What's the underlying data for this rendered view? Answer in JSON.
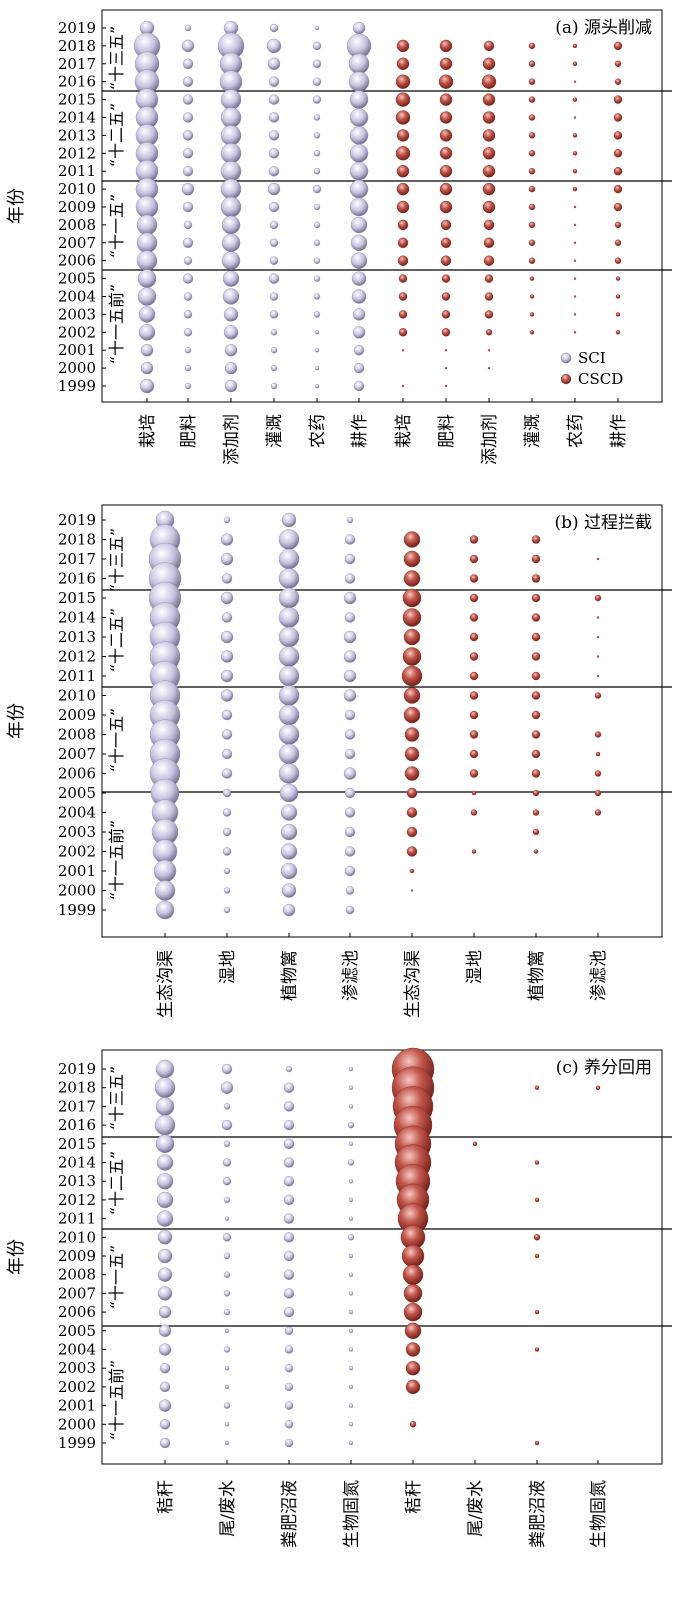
{
  "y_axis_label": "年份",
  "years": [
    "2019",
    "2018",
    "2017",
    "2016",
    "2015",
    "2014",
    "2013",
    "2012",
    "2011",
    "2010",
    "2009",
    "2008",
    "2007",
    "2006",
    "2005",
    "2004",
    "2003",
    "2002",
    "2001",
    "2000",
    "1999"
  ],
  "period_labels": [
    "“十三五”",
    "“十二五”",
    "“十一五”",
    "“十一五前”"
  ],
  "colors": {
    "SCI": "#b9b7d6",
    "CSCD": "#b5473d"
  },
  "chart_data": [
    {
      "type": "scatter",
      "title": "(a) 源头削减",
      "legend": [
        {
          "name": "SCI",
          "color": "#b9b7d6"
        },
        {
          "name": "CSCD",
          "color": "#b5473d"
        }
      ],
      "legend_position": "bottom-right",
      "categories": [
        "栽培",
        "肥料",
        "添加剂",
        "灌溉",
        "农药",
        "耕作",
        "栽培",
        "肥料",
        "添加剂",
        "灌溉",
        "农药",
        "耕作"
      ],
      "series": [
        {
          "name": "SCI",
          "columns": [
            0,
            1,
            2,
            3,
            4,
            5
          ],
          "sizes": [
            [
              7,
              3,
              7,
              4,
              2,
              6
            ],
            [
              13,
              6,
              13,
              7,
              4,
              12
            ],
            [
              12,
              5,
              11,
              6,
              4,
              10
            ],
            [
              12,
              5,
              11,
              5,
              4,
              10
            ],
            [
              11,
              5,
              10,
              5,
              4,
              9
            ],
            [
              11,
              5,
              10,
              5,
              3,
              9
            ],
            [
              11,
              5,
              10,
              5,
              3,
              9
            ],
            [
              11,
              5,
              10,
              5,
              3,
              9
            ],
            [
              11,
              5,
              10,
              5,
              3,
              9
            ],
            [
              11,
              6,
              10,
              6,
              4,
              9
            ],
            [
              11,
              5,
              10,
              5,
              3,
              9
            ],
            [
              10,
              4,
              9,
              4,
              3,
              8
            ],
            [
              10,
              5,
              9,
              4,
              3,
              8
            ],
            [
              10,
              4,
              9,
              4,
              3,
              8
            ],
            [
              9,
              5,
              8,
              5,
              3,
              7
            ],
            [
              9,
              4,
              8,
              4,
              3,
              7
            ],
            [
              8,
              4,
              7,
              4,
              3,
              6
            ],
            [
              8,
              4,
              7,
              3,
              2,
              6
            ],
            [
              6,
              3,
              6,
              3,
              2,
              5
            ],
            [
              6,
              3,
              6,
              3,
              2,
              5
            ],
            [
              7,
              3,
              6,
              3,
              2,
              5
            ]
          ]
        },
        {
          "name": "CSCD",
          "columns": [
            6,
            7,
            8,
            9,
            10,
            11
          ],
          "sizes": [
            [
              0,
              0,
              0,
              0,
              0,
              0
            ],
            [
              6,
              6,
              5,
              3,
              2,
              4
            ],
            [
              6,
              6,
              6,
              3,
              2,
              3
            ],
            [
              7,
              7,
              7,
              3,
              1,
              3
            ],
            [
              7,
              6,
              6,
              3,
              2,
              4
            ],
            [
              7,
              6,
              6,
              3,
              1,
              4
            ],
            [
              6,
              6,
              6,
              3,
              2,
              4
            ],
            [
              7,
              6,
              6,
              3,
              2,
              4
            ],
            [
              6,
              6,
              6,
              3,
              2,
              4
            ],
            [
              6,
              6,
              6,
              3,
              2,
              4
            ],
            [
              6,
              6,
              6,
              3,
              1,
              4
            ],
            [
              5,
              5,
              5,
              3,
              1,
              3
            ],
            [
              5,
              5,
              5,
              3,
              1,
              3
            ],
            [
              5,
              5,
              5,
              3,
              1,
              3
            ],
            [
              4,
              4,
              4,
              2,
              1,
              2
            ],
            [
              4,
              4,
              4,
              2,
              1,
              2
            ],
            [
              4,
              4,
              4,
              2,
              1,
              2
            ],
            [
              4,
              4,
              3,
              2,
              1,
              2
            ],
            [
              1,
              1,
              1,
              0,
              0,
              0
            ],
            [
              0,
              1,
              1,
              0,
              0,
              0
            ],
            [
              1,
              1,
              0,
              0,
              0,
              0
            ]
          ]
        }
      ]
    },
    {
      "type": "scatter",
      "title": "(b) 过程拦截",
      "categories": [
        "生态沟渠",
        "湿地",
        "植物篱",
        "渗滤池",
        "生态沟渠",
        "湿地",
        "植物篱",
        "渗滤池"
      ],
      "series": [
        {
          "name": "SCI",
          "columns": [
            0,
            1,
            2,
            3
          ],
          "sizes": [
            [
              9,
              3,
              7,
              3
            ],
            [
              15,
              6,
              10,
              5
            ],
            [
              16,
              6,
              10,
              5
            ],
            [
              16,
              5,
              10,
              5
            ],
            [
              16,
              6,
              10,
              6
            ],
            [
              15,
              5,
              10,
              5
            ],
            [
              15,
              6,
              10,
              6
            ],
            [
              15,
              6,
              10,
              6
            ],
            [
              15,
              6,
              10,
              6
            ],
            [
              15,
              6,
              10,
              6
            ],
            [
              15,
              5,
              10,
              5
            ],
            [
              15,
              5,
              10,
              5
            ],
            [
              15,
              5,
              10,
              5
            ],
            [
              15,
              5,
              10,
              6
            ],
            [
              14,
              4,
              9,
              5
            ],
            [
              13,
              4,
              8,
              5
            ],
            [
              13,
              4,
              8,
              5
            ],
            [
              12,
              4,
              8,
              5
            ],
            [
              11,
              3,
              8,
              5
            ],
            [
              10,
              3,
              7,
              4
            ],
            [
              9,
              3,
              6,
              4
            ]
          ]
        },
        {
          "name": "CSCD",
          "columns": [
            4,
            5,
            6,
            7
          ],
          "sizes": [
            [
              0,
              0,
              0,
              0
            ],
            [
              8,
              4,
              4,
              0
            ],
            [
              8,
              4,
              4,
              1
            ],
            [
              8,
              4,
              4,
              0
            ],
            [
              9,
              4,
              4,
              3
            ],
            [
              9,
              4,
              4,
              1
            ],
            [
              8,
              4,
              4,
              1
            ],
            [
              9,
              4,
              4,
              1
            ],
            [
              10,
              4,
              4,
              1
            ],
            [
              8,
              4,
              4,
              3
            ],
            [
              8,
              4,
              4,
              0
            ],
            [
              7,
              4,
              4,
              3
            ],
            [
              7,
              4,
              4,
              2
            ],
            [
              7,
              4,
              4,
              3
            ],
            [
              5,
              2,
              3,
              3
            ],
            [
              5,
              3,
              3,
              3
            ],
            [
              5,
              0,
              3,
              0
            ],
            [
              5,
              2,
              2,
              0
            ],
            [
              2,
              0,
              0,
              0
            ],
            [
              1,
              0,
              0,
              0
            ],
            [
              0,
              0,
              0,
              0
            ]
          ]
        }
      ]
    },
    {
      "type": "scatter",
      "title": "(c) 养分回用",
      "categories": [
        "秸秆",
        "尾/废水",
        "粪肥沼液",
        "生物固氮",
        "秸秆",
        "尾/废水",
        "粪肥沼液",
        "生物固氮"
      ],
      "series": [
        {
          "name": "SCI",
          "columns": [
            0,
            1,
            2,
            3
          ],
          "sizes": [
            [
              9,
              5,
              3,
              2
            ],
            [
              10,
              6,
              5,
              2
            ],
            [
              9,
              3,
              5,
              2
            ],
            [
              10,
              5,
              5,
              3
            ],
            [
              9,
              3,
              5,
              2
            ],
            [
              8,
              4,
              5,
              3
            ],
            [
              8,
              4,
              5,
              2
            ],
            [
              8,
              3,
              5,
              2
            ],
            [
              8,
              2,
              5,
              2
            ],
            [
              7,
              4,
              5,
              3
            ],
            [
              7,
              3,
              5,
              2
            ],
            [
              7,
              3,
              5,
              2
            ],
            [
              7,
              3,
              5,
              2
            ],
            [
              6,
              3,
              5,
              2
            ],
            [
              6,
              2,
              4,
              2
            ],
            [
              6,
              3,
              4,
              2
            ],
            [
              5,
              2,
              4,
              2
            ],
            [
              5,
              2,
              4,
              2
            ],
            [
              6,
              3,
              4,
              2
            ],
            [
              5,
              2,
              4,
              2
            ],
            [
              5,
              2,
              4,
              2
            ]
          ]
        },
        {
          "name": "CSCD",
          "columns": [
            4,
            5,
            6,
            7
          ],
          "sizes": [
            [
              21,
              0,
              0,
              0
            ],
            [
              21,
              0,
              2,
              2
            ],
            [
              20,
              0,
              0,
              0
            ],
            [
              19,
              0,
              0,
              0
            ],
            [
              18,
              2,
              0,
              0
            ],
            [
              18,
              0,
              2,
              0
            ],
            [
              17,
              0,
              0,
              0
            ],
            [
              16,
              0,
              2,
              0
            ],
            [
              15,
              0,
              0,
              0
            ],
            [
              12,
              0,
              3,
              0
            ],
            [
              11,
              0,
              2,
              0
            ],
            [
              10,
              0,
              0,
              0
            ],
            [
              9,
              0,
              0,
              0
            ],
            [
              9,
              0,
              2,
              0
            ],
            [
              8,
              0,
              0,
              0
            ],
            [
              7,
              0,
              2,
              0
            ],
            [
              7,
              0,
              0,
              0
            ],
            [
              7,
              0,
              0,
              0
            ],
            [
              0,
              0,
              0,
              0
            ],
            [
              3,
              0,
              0,
              0
            ],
            [
              0,
              0,
              2,
              0
            ]
          ]
        }
      ]
    }
  ]
}
